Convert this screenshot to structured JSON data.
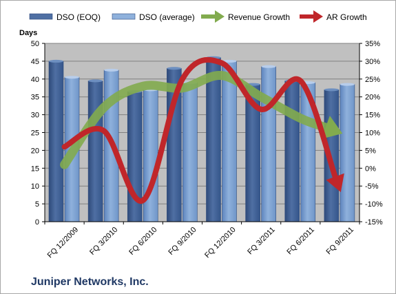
{
  "company_label": "Juniper Networks, Inc.",
  "chart_data": {
    "type": "bar",
    "title": "",
    "ylabel": "Days",
    "ylim": [
      0,
      50
    ],
    "y_ticks": [
      0,
      5,
      10,
      15,
      20,
      25,
      30,
      35,
      40,
      45,
      50
    ],
    "y2lim": [
      -15,
      35
    ],
    "y2_ticks": [
      "-15%",
      "-10%",
      "-5%",
      "0%",
      "5%",
      "10%",
      "15%",
      "20%",
      "25%",
      "30%",
      "35%"
    ],
    "categories": [
      "FQ 12/2009",
      "FQ 3/2010",
      "FQ 6/2010",
      "FQ 9/2010",
      "FQ 12/2010",
      "FQ 3/2011",
      "FQ 6/2011",
      "FQ 9/2011"
    ],
    "series": [
      {
        "name": "DSO (EOQ)",
        "type": "bar",
        "axis": "left",
        "color": "#4f6fa3",
        "values": [
          45,
          39.5,
          36.5,
          43,
          46,
          38.5,
          39.5,
          37
        ]
      },
      {
        "name": "DSO (average)",
        "type": "bar",
        "axis": "left",
        "color": "#8fb1dc",
        "values": [
          40.5,
          42.5,
          37,
          39,
          45,
          43.5,
          39,
          38.5
        ]
      },
      {
        "name": "Revenue Growth",
        "type": "arrow-line",
        "axis": "right",
        "color": "#82ab4e",
        "values": [
          1,
          17,
          23,
          22.5,
          26,
          20,
          14,
          10
        ]
      },
      {
        "name": "AR Growth",
        "type": "arrow-line",
        "axis": "right",
        "color": "#c0262a",
        "values": [
          6,
          10.5,
          -9,
          25,
          29.5,
          16.5,
          24.5,
          -6
        ]
      }
    ],
    "legend_position": "top",
    "grid": true,
    "plot_background": "#c0c0c0"
  }
}
